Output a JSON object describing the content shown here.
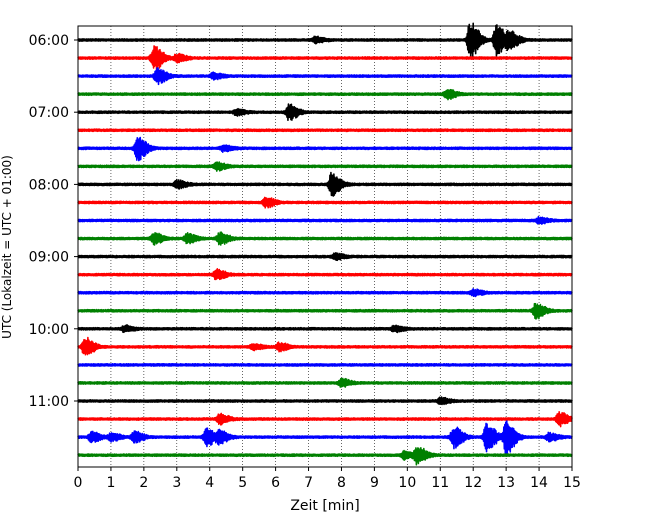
{
  "chart_data": {
    "type": "line",
    "title": "",
    "xlabel": "Zeit  [min]",
    "ylabel": "UTC (Lokalzeit = UTC + 01:00)",
    "xlim": [
      0,
      15
    ],
    "x_ticks": [
      "0",
      "1",
      "2",
      "3",
      "4",
      "5",
      "6",
      "7",
      "8",
      "9",
      "10",
      "11",
      "12",
      "13",
      "14",
      "15"
    ],
    "y_ticks": [
      "06:00",
      "07:00",
      "08:00",
      "09:00",
      "10:00",
      "11:00"
    ],
    "grid": "vertical dotted lines at each minute",
    "legend": "none",
    "trace_interval_min": 15,
    "trace_colors": [
      "#000000",
      "#ff0000",
      "#0000ff",
      "#008000"
    ],
    "series": [
      {
        "start": "06:00",
        "color": "#000000",
        "events": [
          [
            11.9,
            1.9
          ],
          [
            12.7,
            1.6
          ],
          [
            13.1,
            0.9
          ],
          [
            7.2,
            0.3
          ]
        ]
      },
      {
        "start": "06:15",
        "color": "#ff0000",
        "events": [
          [
            2.3,
            1.3
          ],
          [
            3.0,
            0.4
          ]
        ]
      },
      {
        "start": "06:30",
        "color": "#0000ff",
        "events": [
          [
            2.4,
            0.8
          ],
          [
            4.1,
            0.3
          ]
        ]
      },
      {
        "start": "06:45",
        "color": "#008000",
        "events": [
          [
            11.2,
            0.5
          ]
        ]
      },
      {
        "start": "07:00",
        "color": "#000000",
        "events": [
          [
            6.4,
            0.8
          ],
          [
            4.8,
            0.3
          ]
        ]
      },
      {
        "start": "07:15",
        "color": "#ff0000",
        "events": []
      },
      {
        "start": "07:30",
        "color": "#0000ff",
        "events": [
          [
            1.8,
            1.2
          ],
          [
            4.4,
            0.3
          ]
        ]
      },
      {
        "start": "07:45",
        "color": "#008000",
        "events": [
          [
            4.2,
            0.4
          ]
        ]
      },
      {
        "start": "08:00",
        "color": "#000000",
        "events": [
          [
            7.7,
            1.2
          ],
          [
            3.0,
            0.4
          ]
        ]
      },
      {
        "start": "08:15",
        "color": "#ff0000",
        "events": [
          [
            5.7,
            0.5
          ]
        ]
      },
      {
        "start": "08:30",
        "color": "#0000ff",
        "events": [
          [
            14.0,
            0.3
          ]
        ]
      },
      {
        "start": "08:45",
        "color": "#008000",
        "events": [
          [
            2.3,
            0.6
          ],
          [
            3.3,
            0.5
          ],
          [
            4.3,
            0.6
          ]
        ]
      },
      {
        "start": "09:00",
        "color": "#000000",
        "events": [
          [
            7.8,
            0.3
          ]
        ]
      },
      {
        "start": "09:15",
        "color": "#ff0000",
        "events": [
          [
            4.2,
            0.5
          ]
        ]
      },
      {
        "start": "09:30",
        "color": "#0000ff",
        "events": [
          [
            12.0,
            0.3
          ]
        ]
      },
      {
        "start": "09:45",
        "color": "#008000",
        "events": [
          [
            13.9,
            0.8
          ]
        ]
      },
      {
        "start": "10:00",
        "color": "#000000",
        "events": [
          [
            1.4,
            0.3
          ],
          [
            9.6,
            0.3
          ]
        ]
      },
      {
        "start": "10:15",
        "color": "#ff0000",
        "events": [
          [
            0.2,
            1.0
          ],
          [
            6.1,
            0.4
          ],
          [
            5.3,
            0.3
          ]
        ]
      },
      {
        "start": "10:30",
        "color": "#0000ff",
        "events": []
      },
      {
        "start": "10:45",
        "color": "#008000",
        "events": [
          [
            8.0,
            0.4
          ]
        ]
      },
      {
        "start": "11:00",
        "color": "#000000",
        "events": [
          [
            11.0,
            0.3
          ]
        ]
      },
      {
        "start": "11:15",
        "color": "#ff0000",
        "events": [
          [
            4.3,
            0.5
          ],
          [
            14.6,
            0.7
          ]
        ]
      },
      {
        "start": "11:30",
        "color": "#0000ff",
        "events": [
          [
            0.4,
            0.5
          ],
          [
            1.0,
            0.4
          ],
          [
            1.7,
            0.6
          ],
          [
            3.9,
            0.9
          ],
          [
            4.3,
            0.6
          ],
          [
            11.4,
            1.1
          ],
          [
            12.4,
            1.5
          ],
          [
            13.0,
            1.7
          ],
          [
            14.3,
            0.4
          ]
        ]
      },
      {
        "start": "11:45",
        "color": "#008000",
        "events": [
          [
            10.3,
            0.9
          ],
          [
            9.9,
            0.4
          ]
        ]
      }
    ]
  }
}
